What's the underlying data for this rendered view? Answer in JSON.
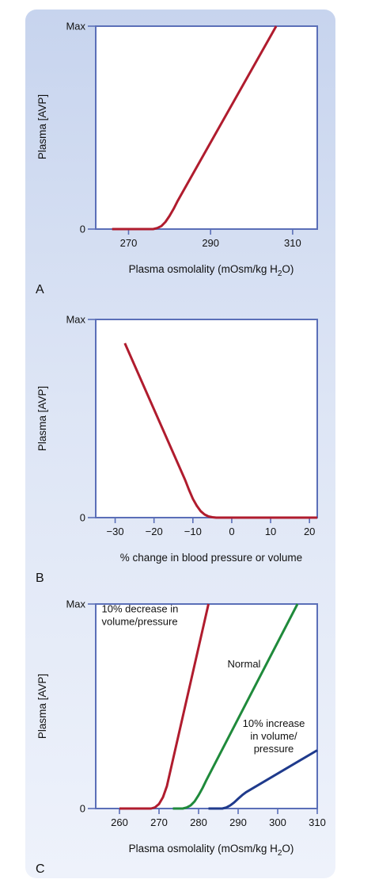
{
  "chart_data": [
    {
      "type": "line",
      "panel_label": "A",
      "xlabel": "Plasma osmolality (mOsm/kg H",
      "xlabel_sub": "2",
      "xlabel_tail": "O)",
      "ylabel": "Plasma [AVP]",
      "xlim": [
        262,
        316
      ],
      "ylim": [
        0,
        100
      ],
      "y_tick_labels": {
        "bottom": "0",
        "top": "Max"
      },
      "x_ticks": [
        270,
        290,
        310
      ],
      "series": [
        {
          "color": "#b01c2e",
          "points": [
            [
              266,
              0
            ],
            [
              276,
              0
            ],
            [
              277,
              0.5
            ],
            [
              278,
              1.5
            ],
            [
              279,
              3.5
            ],
            [
              280,
              6.5
            ],
            [
              281,
              10
            ],
            [
              282,
              14
            ],
            [
              306,
              100
            ]
          ]
        }
      ],
      "annotations": []
    },
    {
      "type": "line",
      "panel_label": "B",
      "xlabel": "% change in blood pressure or volume",
      "xlabel_sub": "",
      "xlabel_tail": "",
      "ylabel": "Plasma [AVP]",
      "xlim": [
        -35,
        22
      ],
      "ylim": [
        0,
        100
      ],
      "y_tick_labels": {
        "bottom": "0",
        "top": "Max"
      },
      "x_ticks": [
        -30,
        -20,
        -10,
        0,
        10,
        20
      ],
      "x_tick_labels": [
        "−30",
        "−20",
        "−10",
        "0",
        "10",
        "20"
      ],
      "series": [
        {
          "color": "#b01c2e",
          "points": [
            [
              -27.5,
              88
            ],
            [
              -12,
              19
            ],
            [
              -11,
              14
            ],
            [
              -10,
              9.5
            ],
            [
              -9,
              6
            ],
            [
              -8,
              3.3
            ],
            [
              -7,
              1.6
            ],
            [
              -6,
              0.6
            ],
            [
              -5,
              0.2
            ],
            [
              -4,
              0
            ],
            [
              22,
              0
            ]
          ]
        }
      ],
      "annotations": []
    },
    {
      "type": "line",
      "panel_label": "C",
      "xlabel": "Plasma osmolality (mOsm/kg H",
      "xlabel_sub": "2",
      "xlabel_tail": "O)",
      "ylabel": "Plasma [AVP]",
      "xlim": [
        254,
        310
      ],
      "ylim": [
        0,
        100
      ],
      "y_tick_labels": {
        "bottom": "0",
        "top": "Max"
      },
      "x_ticks": [
        260,
        270,
        280,
        290,
        300,
        310
      ],
      "series": [
        {
          "name": "10% decrease in volume/pressure",
          "color": "#b01c2e",
          "points": [
            [
              260,
              0
            ],
            [
              268,
              0
            ],
            [
              269,
              0.6
            ],
            [
              270,
              2.2
            ],
            [
              271,
              5.5
            ],
            [
              272,
              11
            ],
            [
              282.5,
              100
            ]
          ]
        },
        {
          "name": "Normal",
          "color": "#1f8a3b",
          "points": [
            [
              273.5,
              0
            ],
            [
              276,
              0
            ],
            [
              277,
              0.5
            ],
            [
              278,
              1.5
            ],
            [
              279,
              3.5
            ],
            [
              280,
              6.5
            ],
            [
              281,
              10
            ],
            [
              282,
              14
            ],
            [
              305,
              100
            ]
          ]
        },
        {
          "name": "10% increase in volume/pressure",
          "color": "#1f3a8c",
          "points": [
            [
              282.5,
              0
            ],
            [
              286,
              0
            ],
            [
              287,
              0.5
            ],
            [
              288,
              1.5
            ],
            [
              289,
              3
            ],
            [
              290,
              4.8
            ],
            [
              291,
              6.5
            ],
            [
              292,
              8
            ],
            [
              310,
              28.5
            ]
          ]
        }
      ],
      "annotations": [
        {
          "lines": [
            "10% decrease in",
            "volume/pressure"
          ],
          "x": 255.5,
          "y": 96,
          "anchor": "start"
        },
        {
          "lines": [
            "Normal"
          ],
          "x": 291.5,
          "y": 69,
          "anchor": "middle"
        },
        {
          "lines": [
            "10% increase",
            "in volume/",
            "pressure"
          ],
          "x": 299,
          "y": 40,
          "anchor": "middle"
        }
      ]
    }
  ]
}
